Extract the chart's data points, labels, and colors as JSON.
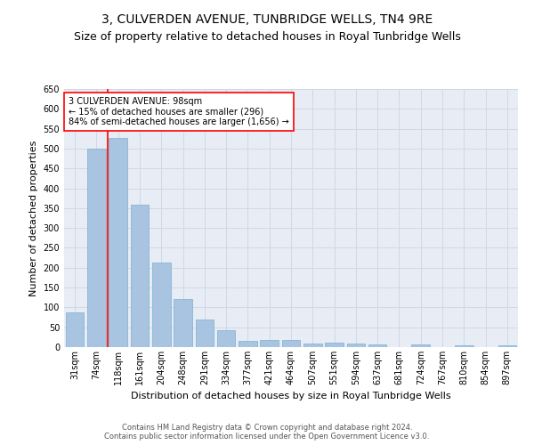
{
  "title": "3, CULVERDEN AVENUE, TUNBRIDGE WELLS, TN4 9RE",
  "subtitle": "Size of property relative to detached houses in Royal Tunbridge Wells",
  "xlabel": "Distribution of detached houses by size in Royal Tunbridge Wells",
  "ylabel": "Number of detached properties",
  "footer_line1": "Contains HM Land Registry data © Crown copyright and database right 2024.",
  "footer_line2": "Contains public sector information licensed under the Open Government Licence v3.0.",
  "categories": [
    "31sqm",
    "74sqm",
    "118sqm",
    "161sqm",
    "204sqm",
    "248sqm",
    "291sqm",
    "334sqm",
    "377sqm",
    "421sqm",
    "464sqm",
    "507sqm",
    "551sqm",
    "594sqm",
    "637sqm",
    "681sqm",
    "724sqm",
    "767sqm",
    "810sqm",
    "854sqm",
    "897sqm"
  ],
  "values": [
    88,
    500,
    527,
    358,
    212,
    120,
    70,
    43,
    16,
    19,
    19,
    10,
    11,
    10,
    7,
    0,
    6,
    0,
    5,
    0,
    5
  ],
  "bar_color": "#a8c4e0",
  "bar_edge_color": "#7aafd4",
  "vline_color": "red",
  "annotation_text": "3 CULVERDEN AVENUE: 98sqm\n← 15% of detached houses are smaller (296)\n84% of semi-detached houses are larger (1,656) →",
  "annotation_box_color": "white",
  "annotation_box_edge_color": "red",
  "ylim": [
    0,
    650
  ],
  "yticks": [
    0,
    50,
    100,
    150,
    200,
    250,
    300,
    350,
    400,
    450,
    500,
    550,
    600,
    650
  ],
  "grid_color": "#d0d8e8",
  "background_color": "#e8edf5",
  "title_fontsize": 10,
  "subtitle_fontsize": 9,
  "ylabel_fontsize": 8,
  "xlabel_fontsize": 8,
  "tick_fontsize": 7,
  "annotation_fontsize": 7,
  "footer_fontsize": 6
}
